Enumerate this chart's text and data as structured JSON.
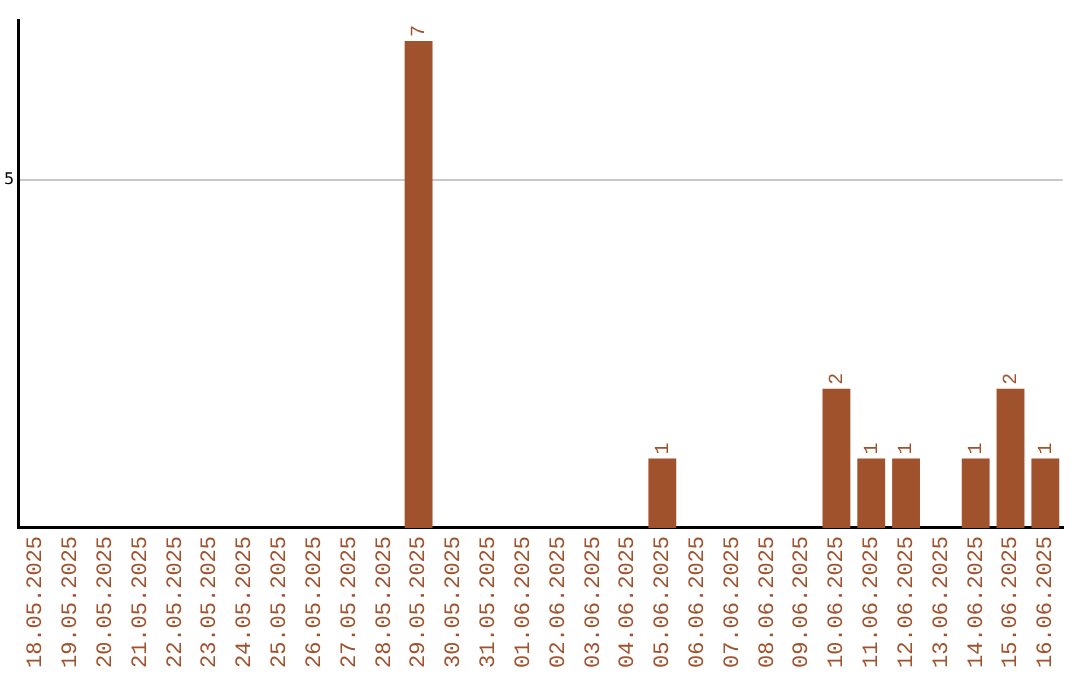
{
  "chart_data": {
    "type": "bar",
    "categories": [
      "18.05.2025",
      "19.05.2025",
      "20.05.2025",
      "21.05.2025",
      "22.05.2025",
      "23.05.2025",
      "24.05.2025",
      "25.05.2025",
      "26.05.2025",
      "27.05.2025",
      "28.05.2025",
      "29.05.2025",
      "30.05.2025",
      "31.05.2025",
      "01.06.2025",
      "02.06.2025",
      "03.06.2025",
      "04.06.2025",
      "05.06.2025",
      "06.06.2025",
      "07.06.2025",
      "08.06.2025",
      "09.06.2025",
      "10.06.2025",
      "11.06.2025",
      "12.06.2025",
      "13.06.2025",
      "14.06.2025",
      "15.06.2025",
      "16.06.2025"
    ],
    "values": [
      0,
      0,
      0,
      0,
      0,
      0,
      0,
      0,
      0,
      0,
      0,
      7,
      0,
      0,
      0,
      0,
      0,
      0,
      1,
      0,
      0,
      0,
      0,
      2,
      1,
      1,
      0,
      1,
      2,
      1
    ],
    "value_labels": [
      null,
      null,
      null,
      null,
      null,
      null,
      null,
      null,
      null,
      null,
      null,
      "7",
      null,
      null,
      null,
      null,
      null,
      null,
      "1",
      null,
      null,
      null,
      null,
      "2",
      "1",
      "1",
      null,
      "1",
      "2",
      "1"
    ],
    "color": "#a0522d",
    "ylim": [
      0,
      7.3
    ],
    "yticks": [
      5
    ],
    "grid": "y"
  }
}
